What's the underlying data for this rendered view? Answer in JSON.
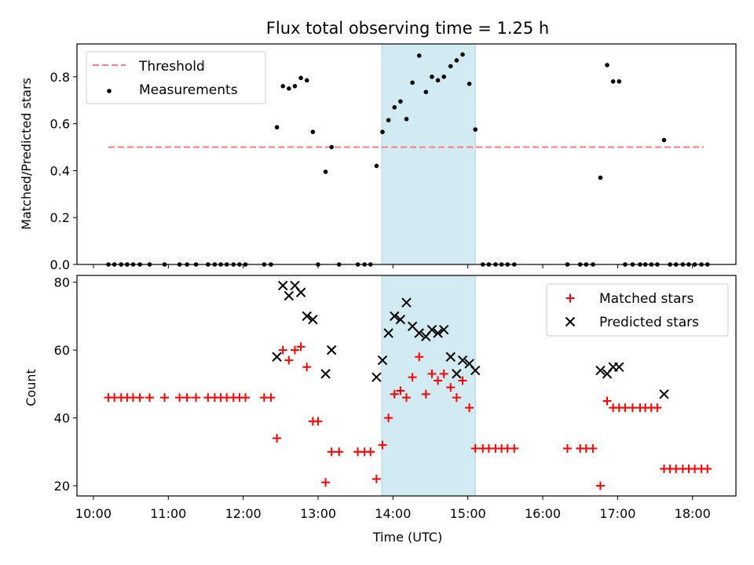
{
  "chart_data": {
    "title": "Flux total observing time = 1.25 h",
    "xlabel": "Time (UTC)",
    "x_ticks": [
      "10:00",
      "11:00",
      "12:00",
      "13:00",
      "14:00",
      "15:00",
      "16:00",
      "17:00",
      "18:00"
    ],
    "x_tick_hours": [
      10,
      11,
      12,
      13,
      14,
      15,
      16,
      17,
      18
    ],
    "xlim_hours": [
      9.78,
      18.58
    ],
    "highlight_span_hours": [
      13.85,
      15.1
    ],
    "highlight_color": "#add8e6",
    "panels": [
      {
        "type": "scatter",
        "ylabel": "Matched/Predicted stars",
        "ylim": [
          0,
          0.94
        ],
        "y_ticks": [
          "0.0",
          "0.2",
          "0.4",
          "0.6",
          "0.8"
        ],
        "y_tick_values": [
          0,
          0.2,
          0.4,
          0.6,
          0.8
        ],
        "legend_position": "upper-left",
        "threshold": {
          "name": "Threshold",
          "value": 0.5,
          "x_range_hours": [
            10.2,
            18.15
          ],
          "color": "#ff7b7b",
          "style": "dashed"
        },
        "series": [
          {
            "name": "Measurements",
            "color": "#000000",
            "marker": "dot",
            "points": [
              [
                10.2,
                0
              ],
              [
                10.28,
                0
              ],
              [
                10.37,
                0
              ],
              [
                10.45,
                0
              ],
              [
                10.53,
                0
              ],
              [
                10.62,
                0
              ],
              [
                10.75,
                0
              ],
              [
                10.95,
                0
              ],
              [
                11.15,
                0
              ],
              [
                11.25,
                0
              ],
              [
                11.37,
                0
              ],
              [
                11.53,
                0
              ],
              [
                11.62,
                0
              ],
              [
                11.7,
                0
              ],
              [
                11.78,
                0
              ],
              [
                11.87,
                0
              ],
              [
                11.95,
                0
              ],
              [
                12.03,
                0
              ],
              [
                12.28,
                0
              ],
              [
                12.37,
                0
              ],
              [
                12.45,
                0.585
              ],
              [
                12.53,
                0.76
              ],
              [
                12.61,
                0.75
              ],
              [
                12.69,
                0.76
              ],
              [
                12.77,
                0.795
              ],
              [
                12.85,
                0.785
              ],
              [
                12.93,
                0.565
              ],
              [
                13.0,
                0
              ],
              [
                13.1,
                0.395
              ],
              [
                13.18,
                0.5
              ],
              [
                13.28,
                0
              ],
              [
                13.53,
                0
              ],
              [
                13.62,
                0
              ],
              [
                13.7,
                0
              ],
              [
                13.78,
                0.42
              ],
              [
                13.86,
                0.565
              ],
              [
                13.94,
                0.615
              ],
              [
                14.02,
                0.67
              ],
              [
                14.1,
                0.695
              ],
              [
                14.18,
                0.62
              ],
              [
                14.26,
                0.775
              ],
              [
                14.35,
                0.89
              ],
              [
                14.44,
                0.735
              ],
              [
                14.52,
                0.8
              ],
              [
                14.6,
                0.785
              ],
              [
                14.68,
                0.8
              ],
              [
                14.77,
                0.845
              ],
              [
                14.85,
                0.87
              ],
              [
                14.93,
                0.895
              ],
              [
                15.02,
                0.77
              ],
              [
                15.1,
                0.575
              ],
              [
                15.2,
                0
              ],
              [
                15.28,
                0
              ],
              [
                15.37,
                0
              ],
              [
                15.45,
                0
              ],
              [
                15.53,
                0
              ],
              [
                15.62,
                0
              ],
              [
                16.33,
                0
              ],
              [
                16.5,
                0
              ],
              [
                16.58,
                0
              ],
              [
                16.67,
                0
              ],
              [
                16.77,
                0.37
              ],
              [
                16.86,
                0.85
              ],
              [
                16.94,
                0.78
              ],
              [
                17.02,
                0.78
              ],
              [
                17.1,
                0
              ],
              [
                17.2,
                0
              ],
              [
                17.3,
                0
              ],
              [
                17.37,
                0
              ],
              [
                17.45,
                0
              ],
              [
                17.53,
                0
              ],
              [
                17.62,
                0.53
              ],
              [
                17.7,
                0
              ],
              [
                17.78,
                0
              ],
              [
                17.87,
                0
              ],
              [
                17.95,
                0
              ],
              [
                18.03,
                0
              ],
              [
                18.12,
                0
              ],
              [
                18.2,
                0
              ]
            ]
          }
        ]
      },
      {
        "type": "scatter",
        "ylabel": "Count",
        "ylim": [
          17,
          82
        ],
        "y_ticks": [
          "20",
          "40",
          "60",
          "80"
        ],
        "y_tick_values": [
          20,
          40,
          60,
          80
        ],
        "legend_position": "upper-right",
        "series": [
          {
            "name": "Matched stars",
            "color": "#ff0000",
            "marker": "plus",
            "points": [
              [
                10.2,
                46
              ],
              [
                10.28,
                46
              ],
              [
                10.37,
                46
              ],
              [
                10.45,
                46
              ],
              [
                10.53,
                46
              ],
              [
                10.62,
                46
              ],
              [
                10.75,
                46
              ],
              [
                10.95,
                46
              ],
              [
                11.15,
                46
              ],
              [
                11.25,
                46
              ],
              [
                11.37,
                46
              ],
              [
                11.53,
                46
              ],
              [
                11.62,
                46
              ],
              [
                11.7,
                46
              ],
              [
                11.78,
                46
              ],
              [
                11.87,
                46
              ],
              [
                11.95,
                46
              ],
              [
                12.03,
                46
              ],
              [
                12.28,
                46
              ],
              [
                12.37,
                46
              ],
              [
                12.45,
                34
              ],
              [
                12.53,
                60
              ],
              [
                12.61,
                57
              ],
              [
                12.69,
                60
              ],
              [
                12.77,
                61
              ],
              [
                12.85,
                55
              ],
              [
                12.93,
                39
              ],
              [
                13.0,
                39
              ],
              [
                13.1,
                21
              ],
              [
                13.18,
                30
              ],
              [
                13.28,
                30
              ],
              [
                13.53,
                30
              ],
              [
                13.62,
                30
              ],
              [
                13.7,
                30
              ],
              [
                13.78,
                22
              ],
              [
                13.86,
                32
              ],
              [
                13.94,
                40
              ],
              [
                14.02,
                47
              ],
              [
                14.1,
                48
              ],
              [
                14.18,
                46
              ],
              [
                14.26,
                52
              ],
              [
                14.35,
                58
              ],
              [
                14.44,
                47
              ],
              [
                14.52,
                53
              ],
              [
                14.6,
                51
              ],
              [
                14.68,
                53
              ],
              [
                14.77,
                49
              ],
              [
                14.85,
                46
              ],
              [
                14.93,
                51
              ],
              [
                15.02,
                43
              ],
              [
                15.1,
                31
              ],
              [
                15.2,
                31
              ],
              [
                15.28,
                31
              ],
              [
                15.37,
                31
              ],
              [
                15.45,
                31
              ],
              [
                15.53,
                31
              ],
              [
                15.62,
                31
              ],
              [
                16.33,
                31
              ],
              [
                16.5,
                31
              ],
              [
                16.58,
                31
              ],
              [
                16.67,
                31
              ],
              [
                16.77,
                20
              ],
              [
                16.86,
                45
              ],
              [
                16.94,
                43
              ],
              [
                17.02,
                43
              ],
              [
                17.1,
                43
              ],
              [
                17.2,
                43
              ],
              [
                17.3,
                43
              ],
              [
                17.37,
                43
              ],
              [
                17.45,
                43
              ],
              [
                17.53,
                43
              ],
              [
                17.62,
                25
              ],
              [
                17.7,
                25
              ],
              [
                17.78,
                25
              ],
              [
                17.87,
                25
              ],
              [
                17.95,
                25
              ],
              [
                18.03,
                25
              ],
              [
                18.12,
                25
              ],
              [
                18.2,
                25
              ]
            ]
          },
          {
            "name": "Predicted stars",
            "color": "#000000",
            "marker": "x",
            "points": [
              [
                12.45,
                58
              ],
              [
                12.53,
                79
              ],
              [
                12.61,
                76
              ],
              [
                12.69,
                79
              ],
              [
                12.77,
                77
              ],
              [
                12.85,
                70
              ],
              [
                12.93,
                69
              ],
              [
                13.1,
                53
              ],
              [
                13.18,
                60
              ],
              [
                13.78,
                52
              ],
              [
                13.86,
                57
              ],
              [
                13.94,
                65
              ],
              [
                14.02,
                70
              ],
              [
                14.1,
                69
              ],
              [
                14.18,
                74
              ],
              [
                14.26,
                67
              ],
              [
                14.35,
                65
              ],
              [
                14.44,
                64
              ],
              [
                14.52,
                66
              ],
              [
                14.6,
                65
              ],
              [
                14.68,
                66
              ],
              [
                14.77,
                58
              ],
              [
                14.85,
                53
              ],
              [
                14.93,
                57
              ],
              [
                15.02,
                56
              ],
              [
                15.1,
                54
              ],
              [
                16.77,
                54
              ],
              [
                16.86,
                53
              ],
              [
                16.94,
                55
              ],
              [
                17.02,
                55
              ],
              [
                17.62,
                47
              ]
            ]
          }
        ]
      }
    ]
  }
}
